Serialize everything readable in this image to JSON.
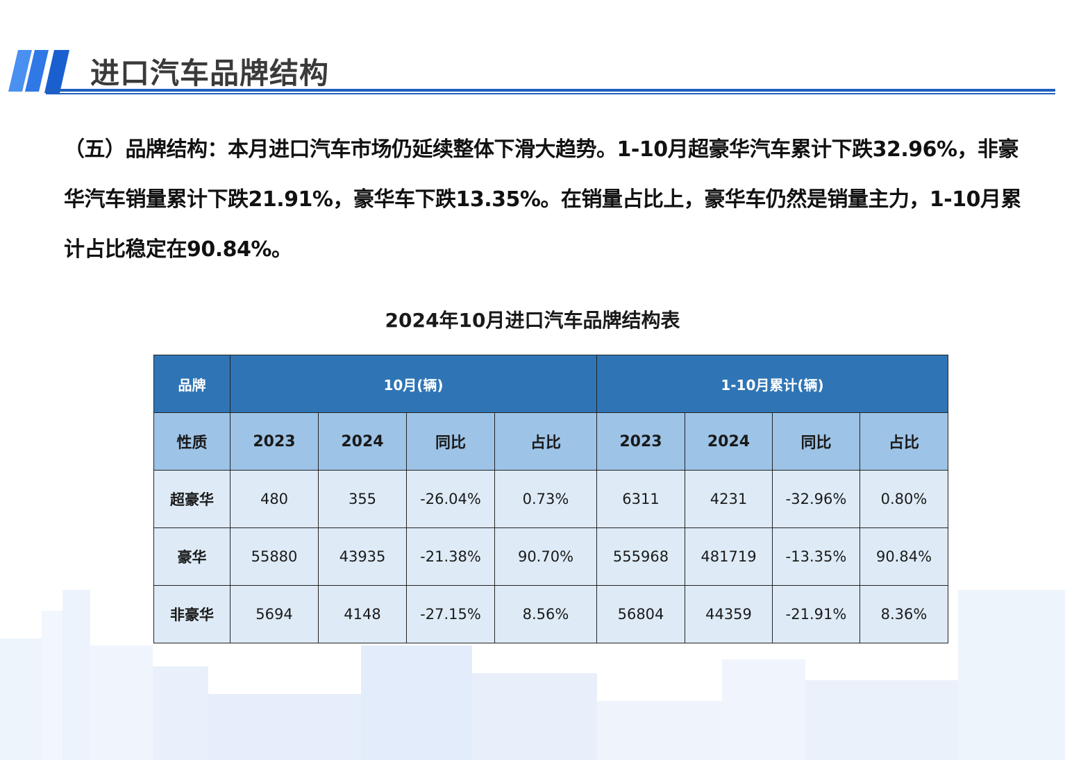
{
  "header": {
    "title": "进口汽车品牌结构"
  },
  "paragraph": "（五）品牌结构：本月进口汽车市场仍延续整体下滑大趋势。1-10月超豪华汽车累计下跌32.96%，非豪华汽车销量累计下跌21.91%，豪华车下跌13.35%。在销量占比上，豪华车仍然是销量主力，1-10月累计占比稳定在90.84%。",
  "table": {
    "title": "2024年10月进口汽车品牌结构表",
    "header1": [
      "品牌",
      "10月(辆)",
      "1-10月累计(辆)"
    ],
    "header2": [
      "性质",
      "2023",
      "2024",
      "同比",
      "占比",
      "2023",
      "2024",
      "同比",
      "占比"
    ],
    "rows": [
      [
        "超豪华",
        "480",
        "355",
        "-26.04%",
        "0.73%",
        "6311",
        "4231",
        "-32.96%",
        "0.80%"
      ],
      [
        "豪华",
        "55880",
        "43935",
        "-21.38%",
        "90.70%",
        "555968",
        "481719",
        "-13.35%",
        "90.84%"
      ],
      [
        "非豪华",
        "5694",
        "4148",
        "-27.15%",
        "8.56%",
        "56804",
        "44359",
        "-21.91%",
        "8.36%"
      ]
    ]
  },
  "colors": {
    "accent": "#1f5fbf",
    "header_bg": "#2f75b5",
    "subheader_bg": "#9dc3e6",
    "body_bg": "#deebf7"
  }
}
